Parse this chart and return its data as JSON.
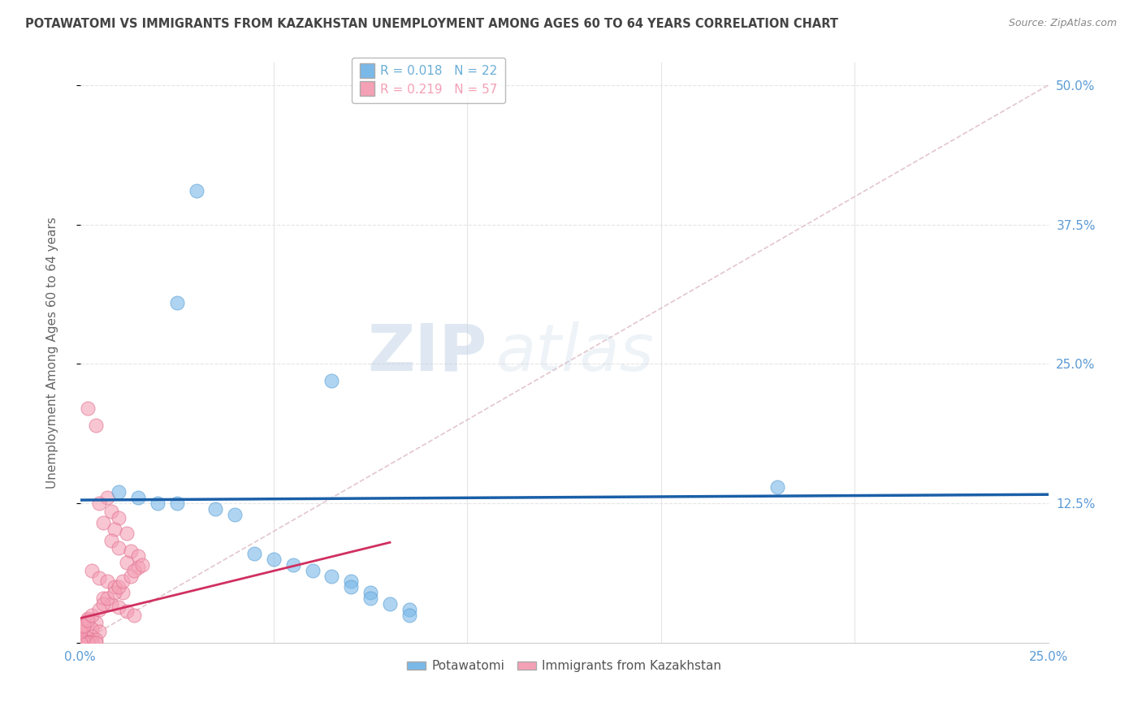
{
  "title": "POTAWATOMI VS IMMIGRANTS FROM KAZAKHSTAN UNEMPLOYMENT AMONG AGES 60 TO 64 YEARS CORRELATION CHART",
  "source": "Source: ZipAtlas.com",
  "ylabel": "Unemployment Among Ages 60 to 64 years",
  "right_yticklabels": [
    "",
    "12.5%",
    "25.0%",
    "37.5%",
    "50.0%"
  ],
  "xlim": [
    0.0,
    0.25
  ],
  "ylim": [
    0.0,
    0.52
  ],
  "legend_entries": [
    {
      "label": "R = 0.018   N = 22",
      "color": "#6baed6"
    },
    {
      "label": "R = 0.219   N = 57",
      "color": "#f4a0b5"
    }
  ],
  "watermark_zip": "ZIP",
  "watermark_atlas": "atlas",
  "blue_scatter": [
    [
      0.03,
      0.405
    ],
    [
      0.025,
      0.305
    ],
    [
      0.065,
      0.235
    ],
    [
      0.01,
      0.135
    ],
    [
      0.015,
      0.13
    ],
    [
      0.02,
      0.125
    ],
    [
      0.025,
      0.125
    ],
    [
      0.035,
      0.12
    ],
    [
      0.04,
      0.115
    ],
    [
      0.045,
      0.08
    ],
    [
      0.05,
      0.075
    ],
    [
      0.055,
      0.07
    ],
    [
      0.06,
      0.065
    ],
    [
      0.065,
      0.06
    ],
    [
      0.07,
      0.055
    ],
    [
      0.07,
      0.05
    ],
    [
      0.075,
      0.045
    ],
    [
      0.075,
      0.04
    ],
    [
      0.08,
      0.035
    ],
    [
      0.085,
      0.03
    ],
    [
      0.085,
      0.025
    ],
    [
      0.18,
      0.14
    ]
  ],
  "pink_scatter": [
    [
      0.002,
      0.21
    ],
    [
      0.004,
      0.195
    ],
    [
      0.007,
      0.13
    ],
    [
      0.005,
      0.125
    ],
    [
      0.008,
      0.118
    ],
    [
      0.01,
      0.112
    ],
    [
      0.006,
      0.108
    ],
    [
      0.009,
      0.102
    ],
    [
      0.012,
      0.098
    ],
    [
      0.008,
      0.092
    ],
    [
      0.01,
      0.085
    ],
    [
      0.013,
      0.082
    ],
    [
      0.015,
      0.078
    ],
    [
      0.012,
      0.072
    ],
    [
      0.015,
      0.068
    ],
    [
      0.003,
      0.065
    ],
    [
      0.005,
      0.058
    ],
    [
      0.007,
      0.055
    ],
    [
      0.009,
      0.05
    ],
    [
      0.011,
      0.045
    ],
    [
      0.006,
      0.04
    ],
    [
      0.008,
      0.035
    ],
    [
      0.01,
      0.032
    ],
    [
      0.012,
      0.028
    ],
    [
      0.014,
      0.025
    ],
    [
      0.002,
      0.022
    ],
    [
      0.004,
      0.018
    ],
    [
      0.001,
      0.015
    ],
    [
      0.003,
      0.012
    ],
    [
      0.005,
      0.01
    ],
    [
      0.001,
      0.008
    ],
    [
      0.003,
      0.006
    ],
    [
      0.0,
      0.005
    ],
    [
      0.002,
      0.004
    ],
    [
      0.004,
      0.003
    ],
    [
      0.0,
      0.003
    ],
    [
      0.001,
      0.002
    ],
    [
      0.002,
      0.001
    ],
    [
      0.003,
      0.001
    ],
    [
      0.0,
      0.001
    ],
    [
      0.001,
      0.0
    ],
    [
      0.002,
      0.0
    ],
    [
      0.0,
      0.0
    ],
    [
      0.004,
      0.0
    ],
    [
      0.0,
      0.01
    ],
    [
      0.001,
      0.015
    ],
    [
      0.002,
      0.02
    ],
    [
      0.003,
      0.025
    ],
    [
      0.005,
      0.03
    ],
    [
      0.006,
      0.035
    ],
    [
      0.007,
      0.04
    ],
    [
      0.009,
      0.045
    ],
    [
      0.01,
      0.05
    ],
    [
      0.011,
      0.055
    ],
    [
      0.013,
      0.06
    ],
    [
      0.014,
      0.065
    ],
    [
      0.016,
      0.07
    ]
  ],
  "blue_trend": {
    "x": [
      0.0,
      0.25
    ],
    "y": [
      0.128,
      0.133
    ]
  },
  "pink_trend": {
    "x": [
      0.0,
      0.08
    ],
    "y": [
      0.022,
      0.09
    ]
  },
  "diagonal_line": {
    "x": [
      0.0,
      0.25
    ],
    "y": [
      0.0,
      0.5
    ]
  },
  "blue_color": "#7ab8e8",
  "blue_edge_color": "#5a9fd4",
  "pink_color": "#f4a0b5",
  "pink_edge_color": "#e07090",
  "blue_trend_color": "#1a5fa8",
  "pink_trend_color": "#d03060",
  "diagonal_color": "#e0c0c8",
  "background_color": "#ffffff",
  "grid_color": "#e5e5e5",
  "title_color": "#444444",
  "source_color": "#888888",
  "axis_label_color": "#666666",
  "tick_color": "#5b9bd5"
}
